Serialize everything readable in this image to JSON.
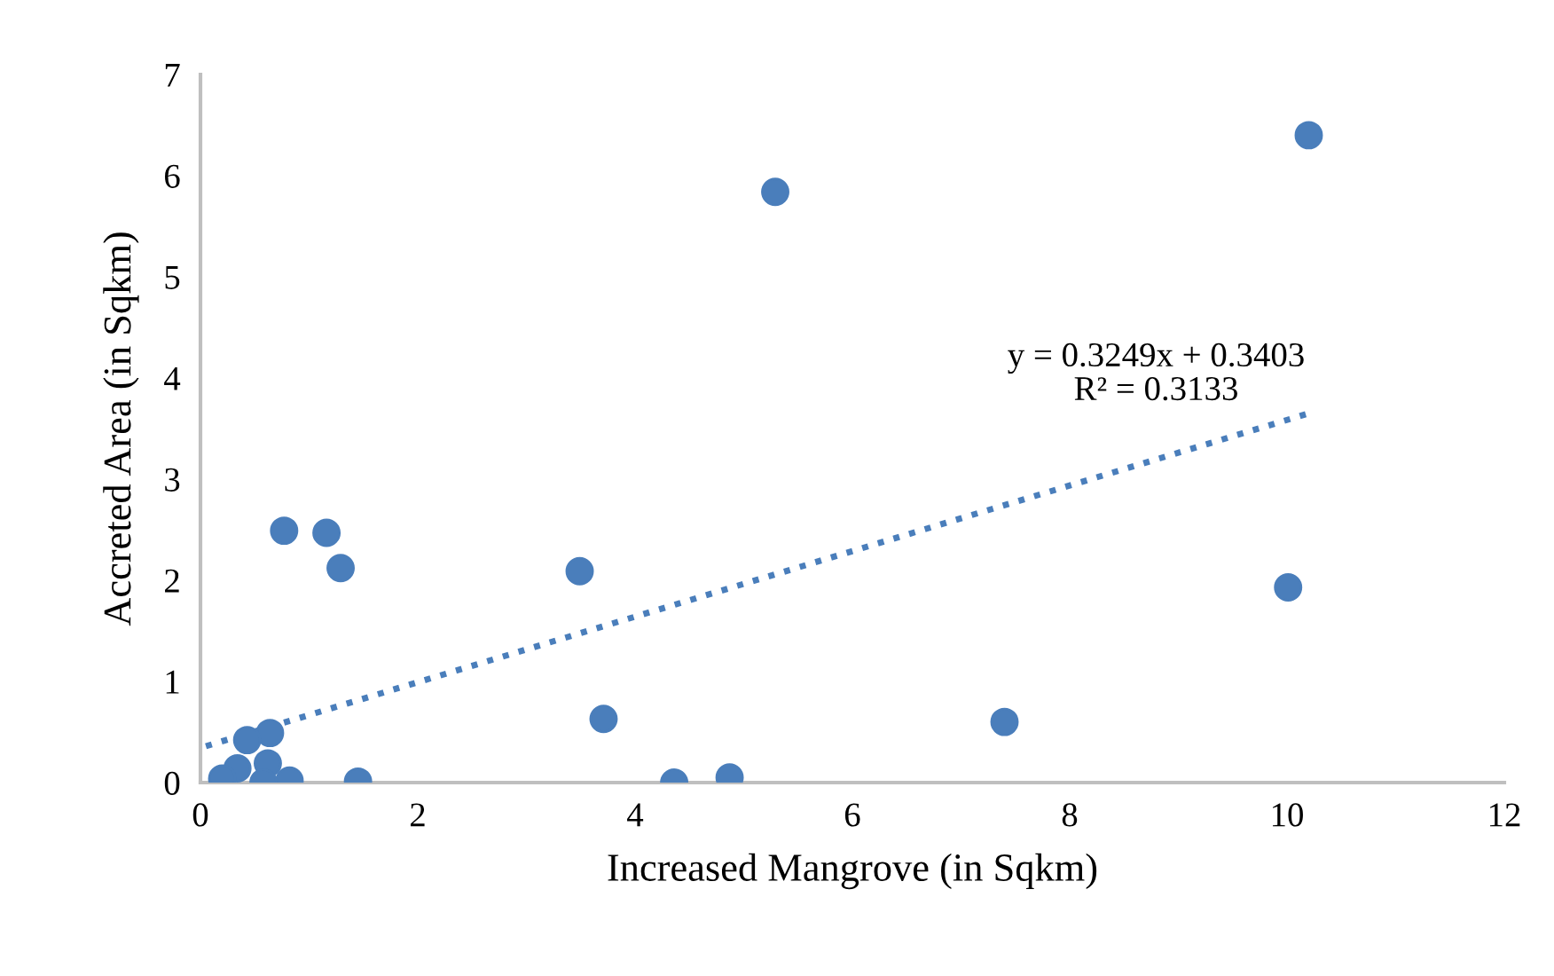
{
  "chart_data": {
    "type": "scatter",
    "xlabel": "Increased Mangrove (in Sqkm)",
    "ylabel": "Accreted Area (in Sqkm)",
    "xlim": [
      0,
      12
    ],
    "ylim": [
      0,
      7
    ],
    "xticks": [
      0,
      2,
      4,
      6,
      8,
      10,
      12
    ],
    "yticks": [
      0,
      1,
      2,
      3,
      4,
      5,
      6,
      7
    ],
    "grid": false,
    "legend": false,
    "marker": "circle",
    "series": [
      {
        "color": "#4a7ebb",
        "x": [
          10.2,
          5.29,
          0.77,
          1.16,
          1.29,
          3.49,
          10.01,
          3.71,
          7.4,
          0.64,
          0.43,
          0.62,
          0.34,
          0.82,
          0.58,
          1.45,
          4.36,
          4.87,
          0.2
        ],
        "values": [
          6.4,
          5.84,
          2.49,
          2.47,
          2.12,
          2.09,
          1.93,
          0.63,
          0.6,
          0.49,
          0.42,
          0.19,
          0.14,
          0.02,
          0.0,
          0.01,
          0.0,
          0.05,
          0.04
        ]
      },
      {
        "type": "line",
        "color": "#4a7ebb",
        "line_style": "dotted",
        "marker": "none",
        "x": [
          0.05,
          10.2
        ],
        "values": [
          0.36,
          3.65
        ]
      }
    ],
    "annotations": [
      "y = 0.3249x + 0.3403\nR² = 0.3133"
    ]
  }
}
